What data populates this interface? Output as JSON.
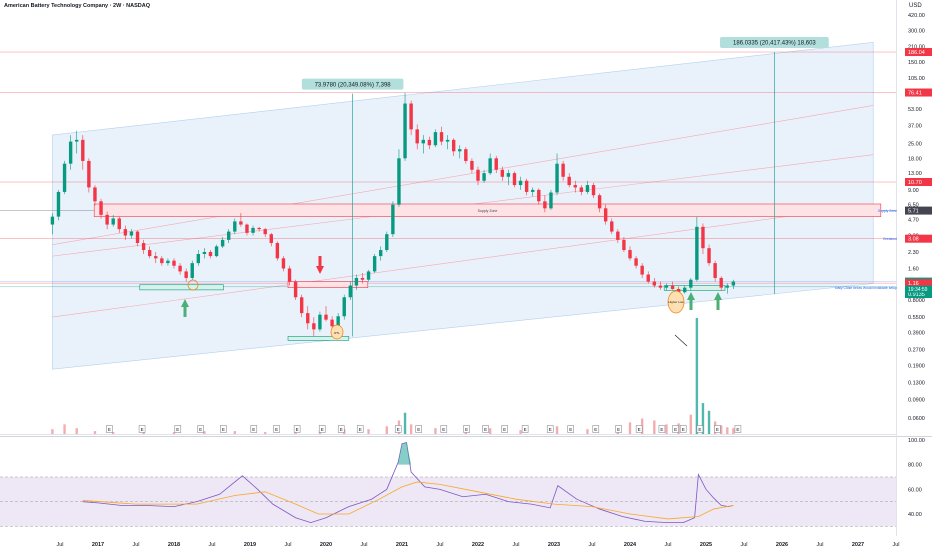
{
  "header": {
    "title": "American Battery Technology Company · 2W · NASDAQ",
    "currency": "USD"
  },
  "chart_data": {
    "type": "candlestick",
    "scale": "log",
    "title": "American Battery Technology Company · 2W · NASDAQ",
    "price_axis_ticks": [
      "420.00",
      "300.00",
      "210.00",
      "150.00",
      "105.00",
      "73.00",
      "53.00",
      "37.00",
      "25.00",
      "18.00",
      "13.00",
      "9.00",
      "6.50",
      "4.70",
      "3.30",
      "2.30",
      "1.60",
      "1.20",
      "0.8000",
      "0.5500",
      "0.3900",
      "0.2700",
      "0.1900",
      "0.1300",
      "0.0900",
      "0.0600",
      "0.0400"
    ],
    "time_axis_ticks": [
      "Jul",
      "2017",
      "Jul",
      "2018",
      "Jul",
      "2019",
      "Jul",
      "2020",
      "Jul",
      "2021",
      "Jul",
      "2022",
      "Jul",
      "2023",
      "Jul",
      "2024",
      "Jul",
      "2025",
      "Jul",
      "2026",
      "Jul",
      "2027",
      "Jul"
    ],
    "price_labels": [
      {
        "text": "186.04",
        "price": 186.04,
        "color": "#f23645"
      },
      {
        "text": "76.41",
        "price": 76.41,
        "color": "#f23645"
      },
      {
        "text": "10.70",
        "price": 10.7,
        "color": "#f23645"
      },
      {
        "text": "5.71",
        "price": 5.71,
        "color": "#434651"
      },
      {
        "text": "3.08",
        "price": 3.08,
        "color": "#f23645"
      },
      {
        "text": "1.20",
        "price": 1.2,
        "color": "#089981"
      },
      {
        "text": "1.16",
        "price": 1.16,
        "color": "#f23645"
      },
      {
        "text": "0.9135",
        "price": 0.9135,
        "color": "#089981"
      }
    ],
    "countdown": "19:34:59",
    "side_notes": [
      {
        "text": "Supply Zone",
        "price": 5.71
      },
      {
        "text": "Breakout",
        "price": 3.08
      },
      {
        "text": "Daily Close below Would invalidate setup",
        "price": 1.05
      }
    ],
    "measurements": [
      {
        "text": "73.9780 (20,349.08%) 7,398",
        "from_price": 0.36,
        "to_price": 74.5,
        "date": 2020.35
      },
      {
        "text": "186.0335 (20,417.43%) 18,603",
        "from_price": 0.91,
        "to_price": 186,
        "date": 2025.9
      }
    ],
    "zones": [
      {
        "text": "Supply Zone",
        "low": 5.0,
        "high": 6.6,
        "from": 2016.95,
        "to": 2027.3
      }
    ],
    "demand_boxes": [
      {
        "from": 2017.55,
        "to": 2018.65,
        "low": 1.0,
        "high": 1.12
      },
      {
        "from": 2019.5,
        "to": 2020.3,
        "low": 0.33,
        "high": 0.36
      },
      {
        "from": 2024.45,
        "to": 2025.25,
        "low": 0.99,
        "high": 1.1
      }
    ],
    "annotation_labels": [
      "RTL",
      "Higher Low"
    ],
    "volume_axis_label": "Volume",
    "rsi_axis_ticks": [
      "100.00",
      "80.00",
      "60.00",
      "40.00"
    ],
    "events_marker": "E",
    "candles": [
      [
        2016.4,
        4.2,
        5.4,
        3.4,
        5.0
      ],
      [
        2016.48,
        5.0,
        9.0,
        4.6,
        8.6
      ],
      [
        2016.56,
        8.6,
        17,
        8.2,
        16
      ],
      [
        2016.64,
        16,
        30,
        14,
        26
      ],
      [
        2016.72,
        26,
        33,
        20,
        27
      ],
      [
        2016.8,
        27,
        30,
        14,
        17
      ],
      [
        2016.88,
        17,
        18,
        8.5,
        9.5
      ],
      [
        2016.96,
        9.5,
        10,
        6.4,
        7.0
      ],
      [
        2017.04,
        7.0,
        7.4,
        4.8,
        5.2
      ],
      [
        2017.12,
        5.2,
        5.6,
        3.8,
        4.2
      ],
      [
        2017.2,
        4.2,
        5.2,
        4.0,
        4.8
      ],
      [
        2017.28,
        4.8,
        5.0,
        3.5,
        3.8
      ],
      [
        2017.36,
        3.8,
        4.1,
        3.0,
        3.3
      ],
      [
        2017.44,
        3.3,
        3.8,
        3.1,
        3.6
      ],
      [
        2017.52,
        3.6,
        3.7,
        2.6,
        2.8
      ],
      [
        2017.6,
        2.8,
        3.0,
        2.2,
        2.4
      ],
      [
        2017.68,
        2.4,
        2.6,
        2.0,
        2.1
      ],
      [
        2017.76,
        2.1,
        2.3,
        1.8,
        2.0
      ],
      [
        2017.84,
        2.0,
        2.1,
        1.7,
        1.8
      ],
      [
        2017.92,
        1.8,
        2.0,
        1.7,
        1.9
      ],
      [
        2018.0,
        1.9,
        2.0,
        1.6,
        1.7
      ],
      [
        2018.08,
        1.7,
        1.8,
        1.4,
        1.5
      ],
      [
        2018.16,
        1.5,
        1.6,
        1.2,
        1.3
      ],
      [
        2018.24,
        1.3,
        1.9,
        1.25,
        1.8
      ],
      [
        2018.32,
        1.8,
        2.4,
        1.7,
        2.2
      ],
      [
        2018.4,
        2.2,
        2.5,
        2.0,
        2.3
      ],
      [
        2018.48,
        2.3,
        2.4,
        2.0,
        2.1
      ],
      [
        2018.56,
        2.1,
        2.7,
        2.05,
        2.6
      ],
      [
        2018.64,
        2.6,
        3.2,
        2.5,
        3.0
      ],
      [
        2018.72,
        3.0,
        3.8,
        2.8,
        3.6
      ],
      [
        2018.8,
        3.6,
        4.8,
        3.4,
        4.5
      ],
      [
        2018.88,
        4.5,
        5.4,
        4.0,
        4.2
      ],
      [
        2018.96,
        4.2,
        4.3,
        3.3,
        3.5
      ],
      [
        2019.04,
        3.5,
        4.1,
        3.3,
        3.9
      ],
      [
        2019.12,
        3.9,
        4.0,
        3.6,
        3.8
      ],
      [
        2019.2,
        3.8,
        3.9,
        3.2,
        3.4
      ],
      [
        2019.28,
        3.4,
        3.5,
        2.6,
        2.8
      ],
      [
        2019.36,
        2.8,
        2.9,
        1.9,
        2.0
      ],
      [
        2019.44,
        2.0,
        2.1,
        1.5,
        1.6
      ],
      [
        2019.52,
        1.6,
        1.7,
        1.1,
        1.2
      ],
      [
        2019.6,
        1.2,
        1.25,
        0.8,
        0.85
      ],
      [
        2019.68,
        0.85,
        0.9,
        0.55,
        0.6
      ],
      [
        2019.76,
        0.6,
        0.7,
        0.42,
        0.48
      ],
      [
        2019.84,
        0.48,
        0.55,
        0.36,
        0.42
      ],
      [
        2019.92,
        0.42,
        0.62,
        0.4,
        0.58
      ],
      [
        2020.0,
        0.58,
        0.7,
        0.5,
        0.52
      ],
      [
        2020.08,
        0.52,
        0.56,
        0.42,
        0.45
      ],
      [
        2020.16,
        0.45,
        0.6,
        0.44,
        0.56
      ],
      [
        2020.24,
        0.56,
        0.9,
        0.52,
        0.85
      ],
      [
        2020.32,
        0.85,
        1.2,
        0.8,
        1.1
      ],
      [
        2020.4,
        1.1,
        1.4,
        1.0,
        1.3
      ],
      [
        2020.48,
        1.3,
        1.45,
        1.15,
        1.25
      ],
      [
        2020.56,
        1.25,
        1.55,
        1.2,
        1.5
      ],
      [
        2020.64,
        1.5,
        2.2,
        1.45,
        2.1
      ],
      [
        2020.72,
        2.1,
        2.6,
        1.9,
        2.4
      ],
      [
        2020.8,
        2.4,
        3.6,
        2.3,
        3.4
      ],
      [
        2020.88,
        3.4,
        7.0,
        3.2,
        6.5
      ],
      [
        2020.96,
        6.5,
        22,
        6.2,
        18
      ],
      [
        2021.04,
        18,
        76,
        17,
        60
      ],
      [
        2021.12,
        60,
        64,
        30,
        34
      ],
      [
        2021.2,
        34,
        38,
        22,
        25
      ],
      [
        2021.28,
        25,
        30,
        20,
        27
      ],
      [
        2021.36,
        27,
        29,
        22,
        24
      ],
      [
        2021.44,
        24,
        34,
        23,
        32
      ],
      [
        2021.52,
        32,
        36,
        24,
        26
      ],
      [
        2021.6,
        26,
        30,
        22,
        27
      ],
      [
        2021.68,
        27,
        28,
        19,
        21
      ],
      [
        2021.76,
        21,
        24,
        18,
        22
      ],
      [
        2021.84,
        22,
        23,
        16,
        17
      ],
      [
        2021.92,
        17,
        18,
        13,
        14
      ],
      [
        2022.0,
        14,
        15,
        10,
        11
      ],
      [
        2022.08,
        11,
        14,
        10.5,
        13
      ],
      [
        2022.16,
        13,
        20,
        12.5,
        18
      ],
      [
        2022.24,
        18,
        19,
        13,
        14
      ],
      [
        2022.32,
        14,
        15,
        11,
        12
      ],
      [
        2022.4,
        12,
        14,
        10,
        13
      ],
      [
        2022.48,
        13,
        13.5,
        9.5,
        10
      ],
      [
        2022.56,
        10,
        12,
        9,
        11
      ],
      [
        2022.64,
        11,
        11.5,
        8,
        8.6
      ],
      [
        2022.72,
        8.6,
        9.5,
        7.8,
        9.0
      ],
      [
        2022.8,
        9.0,
        9.3,
        6.5,
        7.0
      ],
      [
        2022.88,
        7.0,
        8.0,
        5.5,
        6.0
      ],
      [
        2022.96,
        6.0,
        9.0,
        5.8,
        8.5
      ],
      [
        2023.04,
        8.5,
        20,
        8.0,
        16
      ],
      [
        2023.12,
        16,
        17,
        11,
        12
      ],
      [
        2023.2,
        12,
        13,
        9.5,
        10
      ],
      [
        2023.28,
        10,
        11,
        8.5,
        9.5
      ],
      [
        2023.36,
        9.5,
        10,
        8,
        8.6
      ],
      [
        2023.44,
        8.6,
        11,
        8.2,
        10
      ],
      [
        2023.52,
        10,
        10.5,
        7.5,
        8
      ],
      [
        2023.6,
        8,
        8.3,
        5.5,
        6.0
      ],
      [
        2023.68,
        6.0,
        6.5,
        4.2,
        4.5
      ],
      [
        2023.76,
        4.5,
        4.8,
        3.4,
        3.6
      ],
      [
        2023.84,
        3.6,
        3.8,
        2.8,
        3.0
      ],
      [
        2023.92,
        3.0,
        3.2,
        2.3,
        2.4
      ],
      [
        2024.0,
        2.4,
        2.6,
        1.9,
        2.0
      ],
      [
        2024.08,
        2.0,
        2.1,
        1.6,
        1.7
      ],
      [
        2024.16,
        1.7,
        1.8,
        1.3,
        1.4
      ],
      [
        2024.24,
        1.4,
        1.5,
        1.15,
        1.2
      ],
      [
        2024.32,
        1.2,
        1.3,
        1.05,
        1.1
      ],
      [
        2024.4,
        1.1,
        1.2,
        1.0,
        1.05
      ],
      [
        2024.48,
        1.05,
        1.15,
        0.98,
        1.1
      ],
      [
        2024.56,
        1.1,
        1.2,
        1.0,
        1.02
      ],
      [
        2024.64,
        1.02,
        1.08,
        0.9,
        0.95
      ],
      [
        2024.72,
        0.95,
        1.1,
        0.92,
        1.05
      ],
      [
        2024.8,
        1.05,
        1.3,
        1.0,
        1.25
      ],
      [
        2024.88,
        1.25,
        5.0,
        1.2,
        4.0
      ],
      [
        2024.96,
        4.0,
        4.3,
        2.2,
        2.5
      ],
      [
        2025.04,
        2.5,
        2.7,
        1.7,
        1.8
      ],
      [
        2025.12,
        1.8,
        1.9,
        1.2,
        1.3
      ],
      [
        2025.2,
        1.3,
        1.35,
        0.98,
        1.05
      ],
      [
        2025.28,
        1.05,
        1.15,
        0.92,
        1.1
      ],
      [
        2025.36,
        1.1,
        1.25,
        1.02,
        1.2
      ]
    ],
    "volume": [
      [
        2016.4,
        0.5
      ],
      [
        2016.56,
        1
      ],
      [
        2016.72,
        0.6
      ],
      [
        2016.96,
        0.3
      ],
      [
        2017.2,
        0.2
      ],
      [
        2017.6,
        0.2
      ],
      [
        2018.0,
        0.2
      ],
      [
        2018.4,
        0.3
      ],
      [
        2018.8,
        0.3
      ],
      [
        2019.2,
        0.2
      ],
      [
        2019.6,
        0.3
      ],
      [
        2019.92,
        0.4
      ],
      [
        2020.24,
        0.5
      ],
      [
        2020.56,
        0.5
      ],
      [
        2020.8,
        0.8
      ],
      [
        2020.96,
        1.4
      ],
      [
        2021.04,
        2.2
      ],
      [
        2021.12,
        1.0
      ],
      [
        2021.44,
        0.6
      ],
      [
        2021.84,
        0.5
      ],
      [
        2022.16,
        0.6
      ],
      [
        2022.56,
        0.4
      ],
      [
        2023.04,
        0.8
      ],
      [
        2023.44,
        0.5
      ],
      [
        2023.84,
        0.8
      ],
      [
        2024.0,
        1.2
      ],
      [
        2024.16,
        1.6
      ],
      [
        2024.32,
        1.4
      ],
      [
        2024.48,
        1.0
      ],
      [
        2024.64,
        1.1
      ],
      [
        2024.8,
        2.0
      ],
      [
        2024.88,
        12
      ],
      [
        2024.96,
        3.2
      ],
      [
        2025.04,
        2.4
      ],
      [
        2025.12,
        1.3
      ],
      [
        2025.2,
        0.9
      ],
      [
        2025.28,
        0.7
      ],
      [
        2025.36,
        0.6
      ]
    ],
    "volume_max": 12,
    "rsi": [
      [
        2016.8,
        50
      ],
      [
        2017.0,
        49
      ],
      [
        2017.3,
        47
      ],
      [
        2017.6,
        47
      ],
      [
        2018.0,
        46
      ],
      [
        2018.3,
        50
      ],
      [
        2018.6,
        56
      ],
      [
        2018.9,
        71
      ],
      [
        2019.1,
        60
      ],
      [
        2019.3,
        48
      ],
      [
        2019.6,
        37
      ],
      [
        2019.8,
        33
      ],
      [
        2020.0,
        37
      ],
      [
        2020.3,
        46
      ],
      [
        2020.6,
        52
      ],
      [
        2020.8,
        60
      ],
      [
        2020.95,
        82
      ],
      [
        2021.0,
        97
      ],
      [
        2021.06,
        98
      ],
      [
        2021.12,
        74
      ],
      [
        2021.3,
        62
      ],
      [
        2021.5,
        60
      ],
      [
        2021.8,
        54
      ],
      [
        2022.1,
        56
      ],
      [
        2022.4,
        50
      ],
      [
        2022.7,
        48
      ],
      [
        2022.95,
        45
      ],
      [
        2023.05,
        63
      ],
      [
        2023.3,
        52
      ],
      [
        2023.6,
        44
      ],
      [
        2023.9,
        38
      ],
      [
        2024.2,
        34
      ],
      [
        2024.5,
        33
      ],
      [
        2024.7,
        33
      ],
      [
        2024.85,
        37
      ],
      [
        2024.9,
        72
      ],
      [
        2025.0,
        60
      ],
      [
        2025.1,
        53
      ],
      [
        2025.2,
        47
      ],
      [
        2025.3,
        46
      ],
      [
        2025.36,
        47
      ]
    ],
    "rsi_ma": [
      [
        2016.8,
        51
      ],
      [
        2017.5,
        48
      ],
      [
        2018.3,
        48
      ],
      [
        2018.8,
        55
      ],
      [
        2019.2,
        58
      ],
      [
        2019.6,
        48
      ],
      [
        2019.9,
        40
      ],
      [
        2020.3,
        40
      ],
      [
        2020.7,
        52
      ],
      [
        2021.0,
        62
      ],
      [
        2021.2,
        66
      ],
      [
        2021.5,
        64
      ],
      [
        2022.0,
        58
      ],
      [
        2022.5,
        52
      ],
      [
        2023.0,
        48
      ],
      [
        2023.5,
        46
      ],
      [
        2024.0,
        40
      ],
      [
        2024.5,
        36
      ],
      [
        2024.9,
        38
      ],
      [
        2025.1,
        44
      ],
      [
        2025.36,
        47
      ]
    ],
    "rsi_levels": [
      70,
      50,
      30
    ],
    "earnings_dates": [
      2017.15,
      2017.58,
      2018.05,
      2018.35,
      2018.65,
      2019.05,
      2019.35,
      2019.62,
      2019.95,
      2020.2,
      2020.45,
      2020.95,
      2021.22,
      2021.55,
      2021.85,
      2022.1,
      2022.35,
      2022.62,
      2022.95,
      2023.22,
      2023.55,
      2023.85,
      2024.12,
      2024.42,
      2024.6,
      2024.7,
      2024.92,
      2025.15,
      2025.42
    ],
    "colors": {
      "up": "#089981",
      "down": "#f23645",
      "channel": "#cfe3f6",
      "rsi": "#7e57c2",
      "rsi_ma": "#f9a825",
      "supply": "#f23645",
      "demand": "#089981"
    }
  }
}
